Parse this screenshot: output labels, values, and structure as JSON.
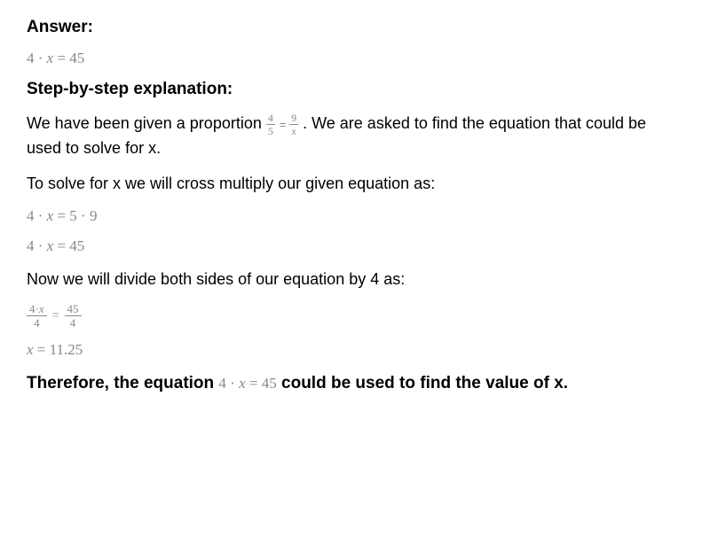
{
  "colors": {
    "text": "#000000",
    "math_gray": "#888888",
    "background": "#ffffff"
  },
  "fonts": {
    "body": "Arial, Helvetica, sans-serif",
    "math": "Times New Roman, serif",
    "heading_size": 19,
    "body_size": 18,
    "math_size": 17,
    "frac_small_size": 13
  },
  "headings": {
    "answer": "Answer:",
    "step_by_step": "Step-by-step explanation:"
  },
  "equations": {
    "main_eq": "4 · x = 45",
    "cross_multiply": "4 · x = 5 · 9",
    "result_45": "4 · x = 45",
    "final_x": "x = 11.25",
    "proportion_left_num": "4",
    "proportion_left_den": "5",
    "proportion_right_num": "9",
    "proportion_right_den": "x",
    "divide_left_num": "4·x",
    "divide_left_den": "4",
    "divide_right_num": "45",
    "divide_right_den": "4",
    "equals": "="
  },
  "text": {
    "intro_before": "We have been given a proportion ",
    "intro_after": ". We are asked to find the equation that could be used to solve for x.",
    "to_solve": "To solve for x we will cross multiply our given equation as:",
    "divide_both": "Now we will divide both sides of our equation by 4 as:",
    "therefore_before": "Therefore, the equation ",
    "therefore_after": " could be used to find the value of x.",
    "inline_eq": "4 · x = 45"
  }
}
